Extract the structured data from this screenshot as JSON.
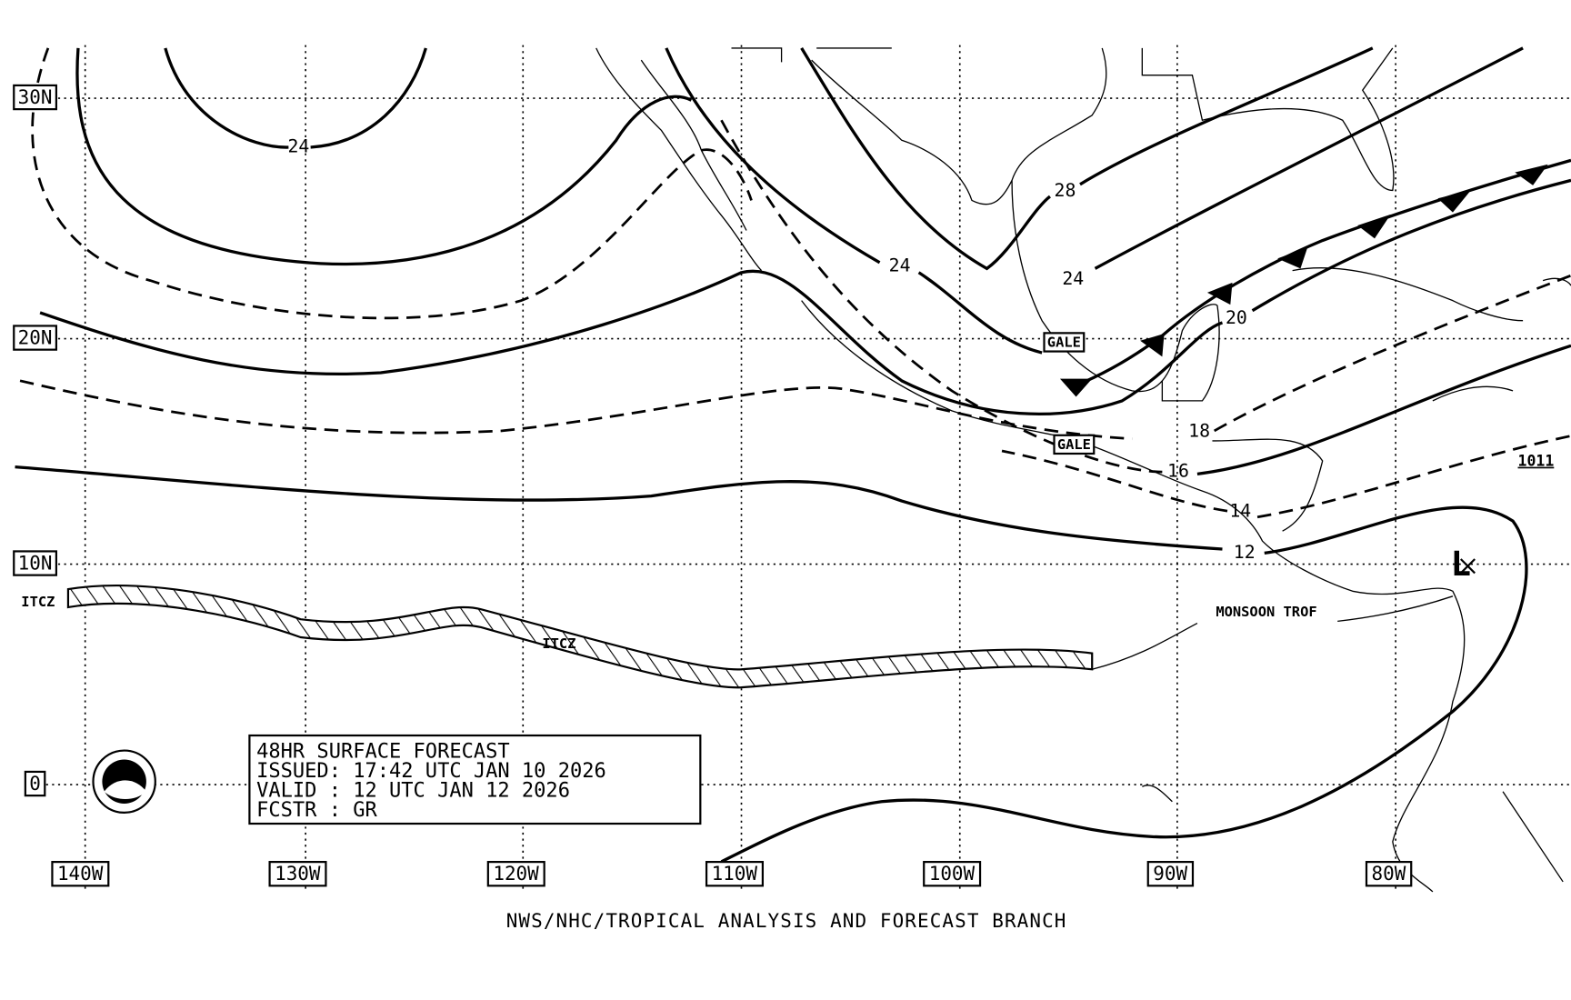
{
  "lat_labels": [
    "30N",
    "20N",
    "10N",
    "0"
  ],
  "lon_labels": [
    "140W",
    "130W",
    "120W",
    "110W",
    "100W",
    "90W",
    "80W"
  ],
  "isobar_labels": [
    24,
    24,
    28,
    24,
    20,
    18,
    16,
    14,
    12,
    1011
  ],
  "annotations": {
    "gale": [
      "GALE",
      "GALE"
    ],
    "itcz": [
      "ITCZ",
      "ITCZ"
    ],
    "monsoon_trough": "MONSOON TROF",
    "low": "L"
  },
  "forecast_box": {
    "lines": [
      "48HR SURFACE FORECAST",
      "ISSUED: 17:42 UTC JAN 10 2026",
      "VALID : 12 UTC JAN 12 2026",
      "FCSTR : GR"
    ]
  },
  "footer": "NWS/NHC/TROPICAL ANALYSIS AND FORECAST BRANCH"
}
